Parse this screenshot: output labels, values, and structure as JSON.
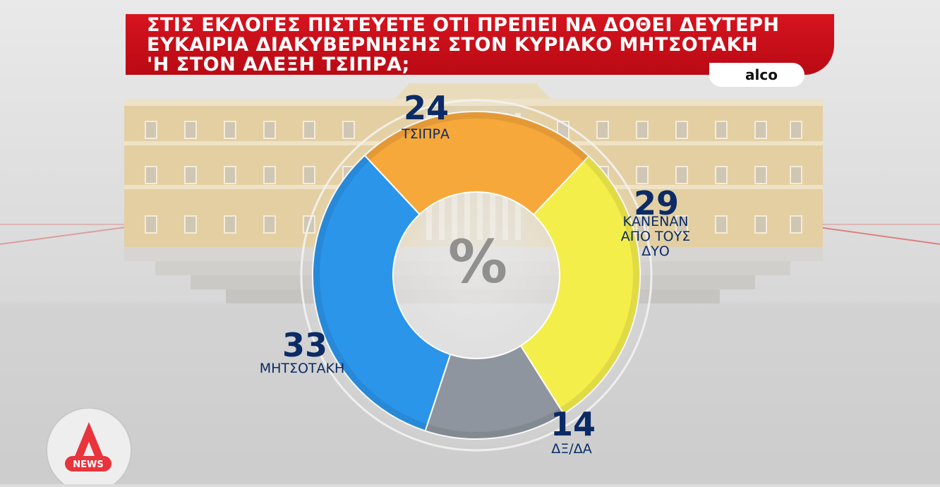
{
  "title": {
    "line1": "ΣΤΙΣ ΕΚΛΟΓΕΣ ΠΙΣΤΕΥΕΤΕ ΟΤΙ ΠΡΕΠΕΙ ΝΑ ΔΟΘΕΙ ΔΕΥΤΕΡΗ",
    "line2": "ΕΥΚΑΙΡΙΑ ΔΙΑΚΥΒΕΡΝΗΣΗΣ ΣΤΟΝ ΚΥΡΙΑΚΟ ΜΗΤΣΟΤΑΚΗ",
    "line3": "'Η ΣΤΟΝ ΑΛΕΞΗ ΤΣΙΠΡΑ;"
  },
  "source": "alco",
  "center_symbol": "%",
  "logo": {
    "text": "NEWS",
    "mark": "Α"
  },
  "colors": {
    "banner": "#cc111b",
    "label_text": "#0b2b66",
    "tsipras": "#f7a83b",
    "none": "#f4ee4a",
    "dk": "#8f959e",
    "mitsotakis": "#2b95ea"
  },
  "chart_data": {
    "type": "pie",
    "style": "donut",
    "unit": "%",
    "series": [
      {
        "label": "ΤΣΙΠΡΑ",
        "value": 24,
        "color": "#f7a83b"
      },
      {
        "label": "ΚΑΝΕΝΑΝ ΑΠΟ ΤΟΥΣ ΔΥΟ",
        "label_lines": [
          "ΚΑΝΕΝΑΝ",
          "ΑΠΟ ΤΟΥΣ",
          "ΔΥΟ"
        ],
        "value": 29,
        "color": "#f4ee4a"
      },
      {
        "label": "ΔΞ/ΔΑ",
        "value": 14,
        "color": "#8f959e"
      },
      {
        "label": "ΜΗΤΣΟΤΑΚΗ",
        "value": 33,
        "color": "#2b95ea"
      }
    ]
  }
}
